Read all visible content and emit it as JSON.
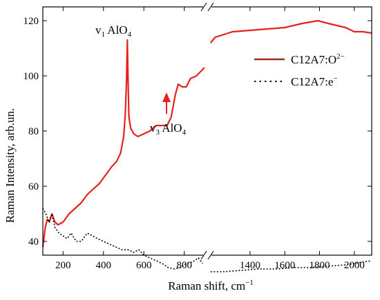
{
  "chart_data": {
    "type": "line",
    "title": "",
    "xlabel": "Raman shift, cm",
    "xlabel_sup": "−1",
    "ylabel": "Raman Intensity, arb.un.",
    "ylim": [
      35,
      125
    ],
    "x_segments": [
      [
        100,
        900
      ],
      [
        1170,
        2100
      ]
    ],
    "x_break_mark": "//",
    "y_ticks": [
      40,
      60,
      80,
      100,
      120
    ],
    "x_ticks": [
      200,
      400,
      600,
      800,
      1400,
      1600,
      1800,
      2000
    ],
    "legend_position": "top-right",
    "colors": {
      "o2": "#e8201c",
      "o2_legend": "#9b2a12",
      "e": "#000000"
    },
    "series": [
      {
        "name": "C12A7:O",
        "name_sup": "2−",
        "style": "solid",
        "points": [
          [
            100,
            38
          ],
          [
            112,
            45
          ],
          [
            122,
            48
          ],
          [
            132,
            47
          ],
          [
            145,
            50
          ],
          [
            160,
            47
          ],
          [
            175,
            46
          ],
          [
            200,
            47
          ],
          [
            230,
            50
          ],
          [
            260,
            52
          ],
          [
            290,
            54
          ],
          [
            320,
            57
          ],
          [
            350,
            59
          ],
          [
            380,
            61
          ],
          [
            410,
            64
          ],
          [
            440,
            67
          ],
          [
            465,
            69
          ],
          [
            485,
            72
          ],
          [
            500,
            78
          ],
          [
            508,
            86
          ],
          [
            514,
            98
          ],
          [
            518,
            113
          ],
          [
            522,
            98
          ],
          [
            526,
            85
          ],
          [
            535,
            81
          ],
          [
            550,
            79
          ],
          [
            570,
            78
          ],
          [
            600,
            79
          ],
          [
            630,
            80
          ],
          [
            660,
            82
          ],
          [
            690,
            82
          ],
          [
            715,
            82
          ],
          [
            735,
            85
          ],
          [
            755,
            93
          ],
          [
            770,
            97
          ],
          [
            790,
            96
          ],
          [
            810,
            96
          ],
          [
            830,
            99
          ],
          [
            860,
            100
          ],
          [
            900,
            103
          ],
          [
            911,
            104
          ],
          [
            913,
            107
          ],
          [
            1173,
            112
          ],
          [
            1200,
            114
          ],
          [
            1300,
            116
          ],
          [
            1400,
            116.5
          ],
          [
            1500,
            117
          ],
          [
            1600,
            117.5
          ],
          [
            1700,
            119
          ],
          [
            1790,
            120
          ],
          [
            1850,
            119
          ],
          [
            1950,
            117.5
          ],
          [
            2000,
            116
          ],
          [
            2050,
            116
          ],
          [
            2100,
            115.5
          ]
        ]
      },
      {
        "name": "C12A7:e",
        "name_sup": "−",
        "style": "dotted",
        "points": [
          [
            100,
            52
          ],
          [
            115,
            50
          ],
          [
            130,
            47
          ],
          [
            145,
            50
          ],
          [
            160,
            45
          ],
          [
            180,
            43
          ],
          [
            200,
            42
          ],
          [
            220,
            41
          ],
          [
            240,
            43
          ],
          [
            265,
            40
          ],
          [
            290,
            40
          ],
          [
            320,
            43
          ],
          [
            345,
            42
          ],
          [
            370,
            41
          ],
          [
            400,
            40
          ],
          [
            430,
            39
          ],
          [
            460,
            38
          ],
          [
            490,
            37
          ],
          [
            520,
            37
          ],
          [
            550,
            36
          ],
          [
            575,
            37
          ],
          [
            600,
            35
          ],
          [
            630,
            34
          ],
          [
            660,
            33
          ],
          [
            690,
            32
          ],
          [
            720,
            30.5
          ],
          [
            750,
            30
          ],
          [
            780,
            30.5
          ],
          [
            810,
            32
          ],
          [
            840,
            32.5
          ],
          [
            870,
            34
          ],
          [
            890,
            32
          ],
          [
            913,
            31
          ],
          [
            1173,
            29
          ],
          [
            1250,
            29
          ],
          [
            1350,
            29.5
          ],
          [
            1450,
            30
          ],
          [
            1550,
            30
          ],
          [
            1650,
            30.5
          ],
          [
            1750,
            30.5
          ],
          [
            1850,
            31
          ],
          [
            1950,
            31.5
          ],
          [
            2050,
            32.5
          ],
          [
            2100,
            33
          ]
        ]
      }
    ],
    "annotations": [
      {
        "id": "v1",
        "text": "v",
        "sub": "1",
        "rest": " AlO",
        "sub2": "4"
      },
      {
        "id": "v3",
        "text": "v",
        "sub": "3",
        "rest": " AlO",
        "sub2": "4"
      }
    ]
  }
}
